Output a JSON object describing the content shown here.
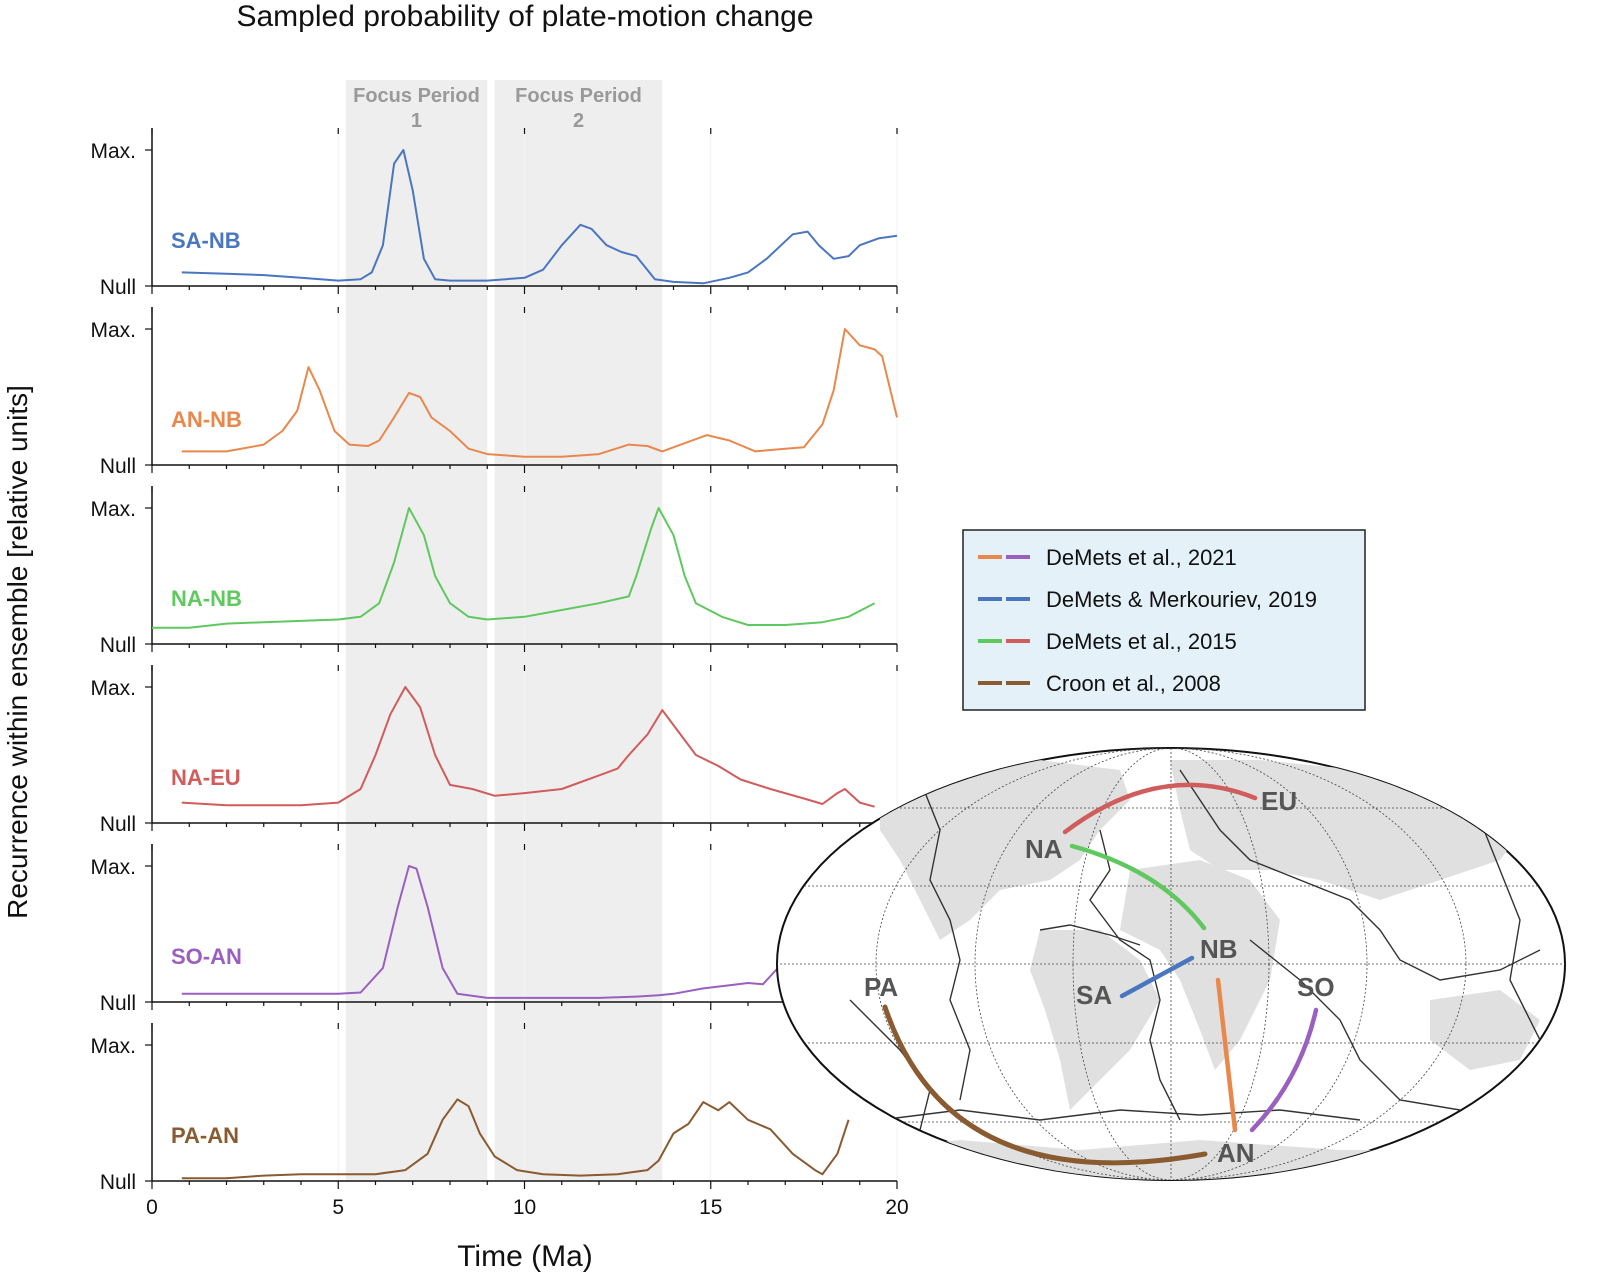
{
  "figure": {
    "title": "Sampled probability of plate-motion change",
    "xlabel": "Time (Ma)",
    "ylabel": "Recurrence within ensemble [relative units]",
    "focus_periods": [
      {
        "label_top": "Focus Period",
        "label_num": "1",
        "range": [
          5.2,
          9.0
        ]
      },
      {
        "label_top": "Focus Period",
        "label_num": "2",
        "range": [
          9.2,
          13.7
        ]
      }
    ],
    "y_tick_max": "Max.",
    "y_tick_null": "Null"
  },
  "chart_data": {
    "type": "line",
    "title": "Sampled probability of plate-motion change",
    "xlabel": "Time (Ma)",
    "ylabel": "Recurrence within ensemble [relative units]",
    "xlim": [
      0,
      20
    ],
    "x_ticks": [
      0,
      5,
      10,
      15,
      20
    ],
    "ylim": [
      0,
      1
    ],
    "y_ticks": [
      {
        "value": 0,
        "label": "Null"
      },
      {
        "value": 1,
        "label": "Max."
      }
    ],
    "grid": "vertical",
    "series": [
      {
        "name": "SA-NB",
        "color": "#4a76c0",
        "points": [
          [
            0.8,
            0.1
          ],
          [
            2,
            0.09
          ],
          [
            3,
            0.08
          ],
          [
            4,
            0.06
          ],
          [
            5,
            0.04
          ],
          [
            5.6,
            0.05
          ],
          [
            5.9,
            0.1
          ],
          [
            6.2,
            0.3
          ],
          [
            6.5,
            0.9
          ],
          [
            6.75,
            1.0
          ],
          [
            7.0,
            0.7
          ],
          [
            7.3,
            0.2
          ],
          [
            7.6,
            0.05
          ],
          [
            8,
            0.04
          ],
          [
            9,
            0.04
          ],
          [
            10,
            0.06
          ],
          [
            10.5,
            0.12
          ],
          [
            11,
            0.3
          ],
          [
            11.5,
            0.45
          ],
          [
            11.8,
            0.42
          ],
          [
            12.2,
            0.3
          ],
          [
            12.6,
            0.25
          ],
          [
            13,
            0.22
          ],
          [
            13.5,
            0.05
          ],
          [
            14,
            0.03
          ],
          [
            14.8,
            0.02
          ],
          [
            15.5,
            0.06
          ],
          [
            16,
            0.1
          ],
          [
            16.5,
            0.2
          ],
          [
            17.2,
            0.38
          ],
          [
            17.6,
            0.4
          ],
          [
            17.9,
            0.3
          ],
          [
            18.3,
            0.2
          ],
          [
            18.7,
            0.22
          ],
          [
            19,
            0.3
          ],
          [
            19.5,
            0.35
          ],
          [
            20,
            0.37
          ]
        ]
      },
      {
        "name": "AN-NB",
        "color": "#e8884d",
        "points": [
          [
            0.8,
            0.1
          ],
          [
            2,
            0.1
          ],
          [
            3,
            0.15
          ],
          [
            3.5,
            0.25
          ],
          [
            3.9,
            0.4
          ],
          [
            4.2,
            0.72
          ],
          [
            4.5,
            0.55
          ],
          [
            4.9,
            0.25
          ],
          [
            5.3,
            0.15
          ],
          [
            5.8,
            0.14
          ],
          [
            6.1,
            0.18
          ],
          [
            6.5,
            0.35
          ],
          [
            6.9,
            0.53
          ],
          [
            7.2,
            0.5
          ],
          [
            7.5,
            0.35
          ],
          [
            8,
            0.25
          ],
          [
            8.5,
            0.12
          ],
          [
            9,
            0.08
          ],
          [
            10,
            0.06
          ],
          [
            11,
            0.06
          ],
          [
            12,
            0.08
          ],
          [
            12.8,
            0.15
          ],
          [
            13.3,
            0.14
          ],
          [
            13.7,
            0.1
          ],
          [
            14.2,
            0.15
          ],
          [
            14.9,
            0.22
          ],
          [
            15.5,
            0.18
          ],
          [
            16.2,
            0.1
          ],
          [
            17,
            0.12
          ],
          [
            17.5,
            0.13
          ],
          [
            18,
            0.3
          ],
          [
            18.3,
            0.55
          ],
          [
            18.6,
            1.0
          ],
          [
            19,
            0.88
          ],
          [
            19.4,
            0.85
          ],
          [
            19.6,
            0.8
          ],
          [
            20,
            0.35
          ]
        ]
      },
      {
        "name": "NA-NB",
        "color": "#5fc85f",
        "points": [
          [
            0,
            0.12
          ],
          [
            1,
            0.12
          ],
          [
            2,
            0.15
          ],
          [
            3,
            0.16
          ],
          [
            4,
            0.17
          ],
          [
            5,
            0.18
          ],
          [
            5.6,
            0.2
          ],
          [
            6.1,
            0.3
          ],
          [
            6.5,
            0.6
          ],
          [
            6.9,
            1.0
          ],
          [
            7.3,
            0.8
          ],
          [
            7.6,
            0.5
          ],
          [
            8,
            0.3
          ],
          [
            8.5,
            0.2
          ],
          [
            9,
            0.18
          ],
          [
            10,
            0.2
          ],
          [
            11,
            0.25
          ],
          [
            12,
            0.3
          ],
          [
            12.8,
            0.35
          ],
          [
            13,
            0.5
          ],
          [
            13.4,
            0.85
          ],
          [
            13.6,
            1.0
          ],
          [
            14,
            0.8
          ],
          [
            14.3,
            0.5
          ],
          [
            14.6,
            0.3
          ],
          [
            15.3,
            0.2
          ],
          [
            16,
            0.14
          ],
          [
            17,
            0.14
          ],
          [
            18,
            0.16
          ],
          [
            18.7,
            0.2
          ],
          [
            19.4,
            0.3
          ]
        ]
      },
      {
        "name": "NA-EU",
        "color": "#d05c5c",
        "points": [
          [
            0.8,
            0.15
          ],
          [
            2,
            0.13
          ],
          [
            3,
            0.13
          ],
          [
            4,
            0.13
          ],
          [
            5,
            0.15
          ],
          [
            5.6,
            0.25
          ],
          [
            6,
            0.5
          ],
          [
            6.4,
            0.8
          ],
          [
            6.8,
            1.0
          ],
          [
            7.2,
            0.85
          ],
          [
            7.6,
            0.5
          ],
          [
            8,
            0.28
          ],
          [
            8.6,
            0.25
          ],
          [
            9.2,
            0.2
          ],
          [
            10,
            0.22
          ],
          [
            11,
            0.25
          ],
          [
            12,
            0.35
          ],
          [
            12.5,
            0.4
          ],
          [
            12.8,
            0.5
          ],
          [
            13.3,
            0.65
          ],
          [
            13.7,
            0.83
          ],
          [
            14,
            0.72
          ],
          [
            14.6,
            0.5
          ],
          [
            15.2,
            0.42
          ],
          [
            15.8,
            0.32
          ],
          [
            16.6,
            0.25
          ],
          [
            17.5,
            0.18
          ],
          [
            18,
            0.14
          ],
          [
            18.4,
            0.22
          ],
          [
            18.6,
            0.25
          ],
          [
            19,
            0.15
          ],
          [
            19.4,
            0.12
          ]
        ]
      },
      {
        "name": "SO-AN",
        "color": "#9a60bf",
        "points": [
          [
            0.8,
            0.06
          ],
          [
            2,
            0.06
          ],
          [
            3,
            0.06
          ],
          [
            4,
            0.06
          ],
          [
            5,
            0.06
          ],
          [
            5.6,
            0.07
          ],
          [
            6.2,
            0.25
          ],
          [
            6.6,
            0.7
          ],
          [
            6.9,
            1.0
          ],
          [
            7.1,
            0.98
          ],
          [
            7.4,
            0.7
          ],
          [
            7.8,
            0.25
          ],
          [
            8.2,
            0.06
          ],
          [
            9,
            0.03
          ],
          [
            10,
            0.03
          ],
          [
            11,
            0.03
          ],
          [
            12,
            0.03
          ],
          [
            13,
            0.04
          ],
          [
            13.6,
            0.05
          ],
          [
            14,
            0.06
          ],
          [
            14.8,
            0.1
          ],
          [
            15.4,
            0.12
          ],
          [
            16,
            0.14
          ],
          [
            16.4,
            0.13
          ],
          [
            16.8,
            0.25
          ],
          [
            17.2,
            0.45
          ]
        ]
      },
      {
        "name": "PA-AN",
        "color": "#8a5a30",
        "points": [
          [
            0.8,
            0.02
          ],
          [
            2,
            0.02
          ],
          [
            3,
            0.04
          ],
          [
            4,
            0.05
          ],
          [
            5,
            0.05
          ],
          [
            6,
            0.05
          ],
          [
            6.8,
            0.08
          ],
          [
            7.4,
            0.2
          ],
          [
            7.8,
            0.45
          ],
          [
            8.2,
            0.6
          ],
          [
            8.5,
            0.55
          ],
          [
            8.8,
            0.35
          ],
          [
            9.2,
            0.18
          ],
          [
            9.8,
            0.08
          ],
          [
            10.5,
            0.05
          ],
          [
            11.5,
            0.04
          ],
          [
            12.5,
            0.05
          ],
          [
            13.3,
            0.08
          ],
          [
            13.6,
            0.15
          ],
          [
            14,
            0.35
          ],
          [
            14.4,
            0.42
          ],
          [
            14.8,
            0.58
          ],
          [
            15.2,
            0.52
          ],
          [
            15.5,
            0.58
          ],
          [
            16,
            0.45
          ],
          [
            16.6,
            0.38
          ],
          [
            17.2,
            0.2
          ],
          [
            17.8,
            0.08
          ],
          [
            18,
            0.05
          ],
          [
            18.4,
            0.2
          ],
          [
            18.7,
            0.45
          ]
        ]
      }
    ]
  },
  "legend": {
    "entries": [
      {
        "label": "DeMets et al., 2021",
        "colors": [
          "#e8884d",
          "#9a60bf"
        ]
      },
      {
        "label": "DeMets & Merkouriev, 2019",
        "colors": [
          "#4a76c0",
          "#4a76c0"
        ]
      },
      {
        "label": "DeMets et al., 2015",
        "colors": [
          "#5fc85f",
          "#d05c5c"
        ]
      },
      {
        "label": "Croon et al., 2008",
        "colors": [
          "#8a5a30",
          "#8a5a30"
        ]
      }
    ]
  },
  "map": {
    "plates": [
      "EU",
      "NA",
      "NB",
      "SA",
      "SO",
      "PA",
      "AN"
    ]
  }
}
